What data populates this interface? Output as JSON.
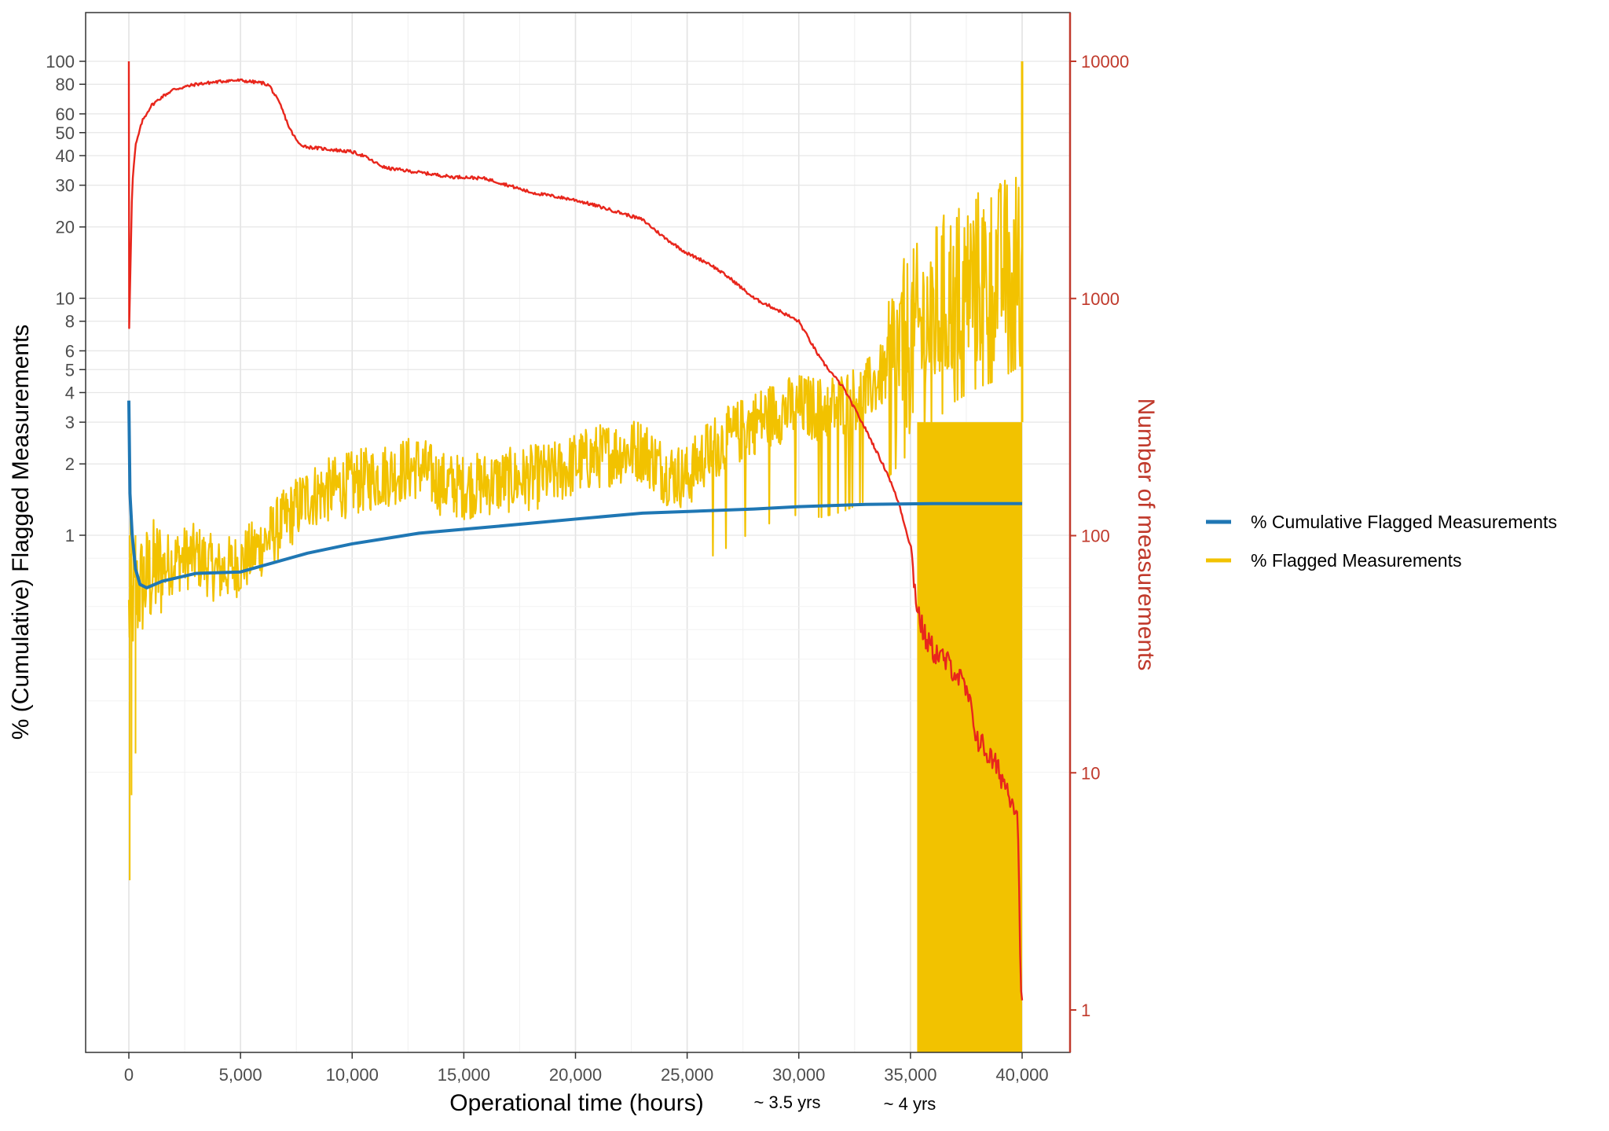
{
  "chart_data": {
    "type": "line",
    "xlabel": "Operational time (hours)",
    "ylabel": "% (Cumulative) Flagged Measurements",
    "y2label": "Number of measurements",
    "xlim": [
      -2000,
      42000
    ],
    "ylim": [
      0.022,
      140
    ],
    "y2lim": [
      0.6,
      16000
    ],
    "yscale": "log",
    "y2scale": "log",
    "grid": true,
    "legend_position": "right",
    "x_ticks": [
      0,
      5000,
      10000,
      15000,
      20000,
      25000,
      30000,
      35000,
      40000
    ],
    "x_tick_labels": [
      "0",
      "5,000",
      "10,000",
      "15,000",
      "20,000",
      "25,000",
      "30,000",
      "35,000",
      "40,000"
    ],
    "y_ticks": [
      1,
      2,
      3,
      4,
      5,
      6,
      8,
      10,
      20,
      30,
      40,
      50,
      60,
      80,
      100
    ],
    "y_tick_labels": [
      "1",
      "2",
      "3",
      "4",
      "5",
      "6",
      "8",
      "10",
      "20",
      "30",
      "40",
      "50",
      "60",
      "80",
      "100"
    ],
    "y2_ticks": [
      1,
      10,
      100,
      1000,
      10000
    ],
    "y2_tick_labels": [
      "1",
      "10",
      "100",
      "1000",
      "10000"
    ],
    "annotations": [
      {
        "x": 29500,
        "text": "~ 3.5 yrs"
      },
      {
        "x": 35000,
        "text": "~ 4 yrs"
      }
    ],
    "colors": {
      "cumulative": "#1f77b4",
      "flagged": "#f2c200",
      "count": "#e8261c",
      "right_axis": "#c0392b"
    },
    "series": [
      {
        "name": "% Cumulative Flagged Measurements",
        "axis": "left",
        "x": [
          0,
          50,
          150,
          300,
          500,
          800,
          1500,
          3000,
          5000,
          8000,
          10000,
          13000,
          16000,
          20000,
          23000,
          28000,
          30000,
          33000,
          36000,
          40000
        ],
        "values": [
          3.7,
          1.5,
          1.0,
          0.72,
          0.62,
          0.6,
          0.64,
          0.69,
          0.7,
          0.84,
          0.92,
          1.02,
          1.08,
          1.17,
          1.24,
          1.29,
          1.32,
          1.35,
          1.36,
          1.36
        ]
      },
      {
        "name": "% Flagged Measurements",
        "axis": "left",
        "x": [
          0,
          200,
          500,
          1000,
          2000,
          3000,
          4000,
          5000,
          6000,
          7000,
          8000,
          9000,
          10000,
          11000,
          12000,
          13000,
          14000,
          15000,
          16000,
          17000,
          18000,
          19000,
          20000,
          21000,
          22000,
          23000,
          24000,
          25000,
          26000,
          27000,
          28000,
          29000,
          30000,
          31000,
          32000,
          33000,
          34000,
          35000,
          35300,
          36000,
          37000,
          38000,
          39000,
          40000
        ],
        "values": [
          0.45,
          0.52,
          0.6,
          0.68,
          0.78,
          0.82,
          0.7,
          0.76,
          0.92,
          1.15,
          1.45,
          1.55,
          1.65,
          1.75,
          1.85,
          1.95,
          1.65,
          1.6,
          1.65,
          1.7,
          1.75,
          1.8,
          2.0,
          2.15,
          2.25,
          2.3,
          1.85,
          1.75,
          2.3,
          2.6,
          3.0,
          3.3,
          3.5,
          3.4,
          3.6,
          4.0,
          5.0,
          6.5,
          7.0,
          8.5,
          10.5,
          12.0,
          13.0,
          15.0
        ]
      },
      {
        "name": "Number of measurements",
        "axis": "right",
        "x": [
          0,
          20,
          60,
          150,
          300,
          600,
          1000,
          1500,
          2000,
          3000,
          4000,
          4500,
          5000,
          5500,
          6000,
          6300,
          6800,
          7200,
          7600,
          8000,
          9000,
          10000,
          10500,
          11000,
          11500,
          12000,
          13000,
          14000,
          14500,
          15000,
          16000,
          17000,
          18000,
          19000,
          20000,
          21000,
          22000,
          23000,
          24000,
          25000,
          26000,
          27000,
          28000,
          29000,
          30000,
          31000,
          32000,
          33000,
          34000,
          34500,
          35000,
          35300,
          35600,
          36000,
          37000,
          37500,
          38000,
          39000,
          39500,
          39800,
          39900,
          40000
        ],
        "values": [
          10000,
          800,
          1200,
          3000,
          4400,
          5600,
          6500,
          7100,
          7600,
          8000,
          8200,
          8300,
          8300,
          8200,
          8100,
          7900,
          6500,
          5200,
          4500,
          4350,
          4250,
          4150,
          4000,
          3750,
          3550,
          3500,
          3400,
          3300,
          3250,
          3250,
          3200,
          3000,
          2800,
          2700,
          2600,
          2450,
          2300,
          2150,
          1800,
          1550,
          1400,
          1200,
          1000,
          900,
          800,
          550,
          420,
          280,
          180,
          135,
          90,
          50,
          38,
          33,
          27,
          22,
          14,
          10,
          8,
          7,
          2,
          1
        ]
      }
    ]
  }
}
